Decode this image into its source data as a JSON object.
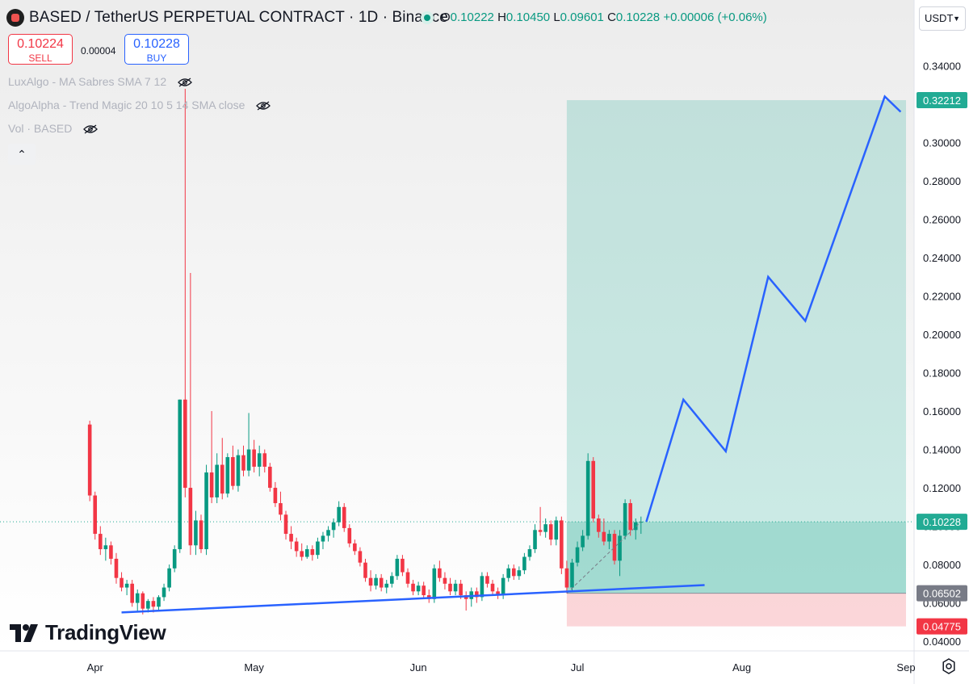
{
  "header": {
    "symbol_title": "BASED / TetherUS PERPETUAL CONTRACT · 1D · Binance",
    "ohlc": {
      "o_label": "O",
      "o": "0.10222",
      "h_label": "H",
      "h": "0.10450",
      "l_label": "L",
      "l": "0.09601",
      "c_label": "C",
      "c": "0.10228",
      "change": "+0.00006 (+0.06%)"
    },
    "up_color": "#089981",
    "down_color": "#f23645"
  },
  "trade": {
    "sell_price": "0.10224",
    "sell_label": "SELL",
    "spread": "0.00004",
    "buy_price": "0.10228",
    "buy_label": "BUY"
  },
  "indicators": [
    {
      "label": "LuxAlgo - MA Sabres SMA 7 12",
      "icon": "eye-off-icon"
    },
    {
      "label": "AlgoAlpha - Trend Magic 20 10 5 14 SMA close",
      "icon": "eye-off-icon"
    },
    {
      "label": "Vol · BASED",
      "icon": "eye-off-icon"
    }
  ],
  "collapse_icon": "chevron-up-icon",
  "currency_select": "USDT",
  "branding": "TradingView",
  "chart_data": {
    "type": "candlestick",
    "interval": "1D",
    "y_axis": {
      "range": [
        0.03,
        0.35
      ],
      "ticks": [
        "0.34000",
        "0.32000",
        "0.30000",
        "0.28000",
        "0.26000",
        "0.24000",
        "0.22000",
        "0.20000",
        "0.18000",
        "0.16000",
        "0.14000",
        "0.12000",
        "0.10000",
        "0.08000",
        "0.06000",
        "0.04000"
      ],
      "price_labels": [
        {
          "value": 0.32212,
          "text": "0.32212",
          "color": "#22ab94"
        },
        {
          "value": 0.10228,
          "text": "0.10228",
          "color": "#22ab94"
        },
        {
          "value": 0.06502,
          "text": "0.06502",
          "color": "#787b86"
        },
        {
          "value": 0.04775,
          "text": "0.04775",
          "color": "#f23645"
        }
      ]
    },
    "x_axis": {
      "range": [
        "2024-03-16",
        "2024-09-01"
      ],
      "ticks": [
        {
          "date": "2024-04-01",
          "label": "Apr"
        },
        {
          "date": "2024-05-01",
          "label": "May"
        },
        {
          "date": "2024-06-01",
          "label": "Jun"
        },
        {
          "date": "2024-07-01",
          "label": "Jul"
        },
        {
          "date": "2024-08-01",
          "label": "Aug"
        },
        {
          "date": "2024-09-01",
          "label": "Sep"
        }
      ]
    },
    "candles": [
      {
        "d": "2024-03-31",
        "o": 0.153,
        "h": 0.155,
        "l": 0.113,
        "c": 0.116
      },
      {
        "d": "2024-04-01",
        "o": 0.116,
        "h": 0.118,
        "l": 0.093,
        "c": 0.096
      },
      {
        "d": "2024-04-02",
        "o": 0.096,
        "h": 0.1,
        "l": 0.085,
        "c": 0.088
      },
      {
        "d": "2024-04-03",
        "o": 0.088,
        "h": 0.094,
        "l": 0.082,
        "c": 0.09
      },
      {
        "d": "2024-04-04",
        "o": 0.09,
        "h": 0.092,
        "l": 0.08,
        "c": 0.083
      },
      {
        "d": "2024-04-05",
        "o": 0.083,
        "h": 0.086,
        "l": 0.07,
        "c": 0.073
      },
      {
        "d": "2024-04-06",
        "o": 0.073,
        "h": 0.076,
        "l": 0.066,
        "c": 0.068
      },
      {
        "d": "2024-04-07",
        "o": 0.068,
        "h": 0.072,
        "l": 0.064,
        "c": 0.07
      },
      {
        "d": "2024-04-08",
        "o": 0.07,
        "h": 0.072,
        "l": 0.058,
        "c": 0.06
      },
      {
        "d": "2024-04-09",
        "o": 0.06,
        "h": 0.067,
        "l": 0.055,
        "c": 0.065
      },
      {
        "d": "2024-04-10",
        "o": 0.065,
        "h": 0.066,
        "l": 0.054,
        "c": 0.057
      },
      {
        "d": "2024-04-11",
        "o": 0.057,
        "h": 0.062,
        "l": 0.055,
        "c": 0.061
      },
      {
        "d": "2024-04-12",
        "o": 0.061,
        "h": 0.063,
        "l": 0.055,
        "c": 0.058
      },
      {
        "d": "2024-04-13",
        "o": 0.058,
        "h": 0.064,
        "l": 0.056,
        "c": 0.063
      },
      {
        "d": "2024-04-14",
        "o": 0.063,
        "h": 0.07,
        "l": 0.061,
        "c": 0.068
      },
      {
        "d": "2024-04-15",
        "o": 0.068,
        "h": 0.08,
        "l": 0.066,
        "c": 0.078
      },
      {
        "d": "2024-04-16",
        "o": 0.078,
        "h": 0.09,
        "l": 0.076,
        "c": 0.088
      },
      {
        "d": "2024-04-17",
        "o": 0.088,
        "h": 0.166,
        "l": 0.086,
        "c": 0.166
      },
      {
        "d": "2024-04-18",
        "o": 0.166,
        "h": 0.328,
        "l": 0.115,
        "c": 0.12
      },
      {
        "d": "2024-04-19",
        "o": 0.12,
        "h": 0.232,
        "l": 0.085,
        "c": 0.09
      },
      {
        "d": "2024-04-20",
        "o": 0.09,
        "h": 0.108,
        "l": 0.085,
        "c": 0.103
      },
      {
        "d": "2024-04-21",
        "o": 0.103,
        "h": 0.106,
        "l": 0.086,
        "c": 0.088
      },
      {
        "d": "2024-04-22",
        "o": 0.088,
        "h": 0.132,
        "l": 0.085,
        "c": 0.128
      },
      {
        "d": "2024-04-23",
        "o": 0.128,
        "h": 0.16,
        "l": 0.112,
        "c": 0.115
      },
      {
        "d": "2024-04-24",
        "o": 0.115,
        "h": 0.138,
        "l": 0.112,
        "c": 0.132
      },
      {
        "d": "2024-04-25",
        "o": 0.132,
        "h": 0.146,
        "l": 0.114,
        "c": 0.117
      },
      {
        "d": "2024-04-26",
        "o": 0.117,
        "h": 0.138,
        "l": 0.115,
        "c": 0.136
      },
      {
        "d": "2024-04-27",
        "o": 0.136,
        "h": 0.142,
        "l": 0.119,
        "c": 0.121
      },
      {
        "d": "2024-04-28",
        "o": 0.121,
        "h": 0.14,
        "l": 0.118,
        "c": 0.137
      },
      {
        "d": "2024-04-29",
        "o": 0.137,
        "h": 0.142,
        "l": 0.126,
        "c": 0.129
      },
      {
        "d": "2024-04-30",
        "o": 0.129,
        "h": 0.159,
        "l": 0.126,
        "c": 0.14
      },
      {
        "d": "2024-05-01",
        "o": 0.14,
        "h": 0.145,
        "l": 0.128,
        "c": 0.131
      },
      {
        "d": "2024-05-02",
        "o": 0.131,
        "h": 0.142,
        "l": 0.126,
        "c": 0.138
      },
      {
        "d": "2024-05-03",
        "o": 0.138,
        "h": 0.14,
        "l": 0.128,
        "c": 0.131
      },
      {
        "d": "2024-05-04",
        "o": 0.131,
        "h": 0.133,
        "l": 0.118,
        "c": 0.12
      },
      {
        "d": "2024-05-05",
        "o": 0.12,
        "h": 0.123,
        "l": 0.11,
        "c": 0.112
      },
      {
        "d": "2024-05-06",
        "o": 0.112,
        "h": 0.118,
        "l": 0.103,
        "c": 0.106
      },
      {
        "d": "2024-05-07",
        "o": 0.106,
        "h": 0.108,
        "l": 0.093,
        "c": 0.096
      },
      {
        "d": "2024-05-08",
        "o": 0.096,
        "h": 0.1,
        "l": 0.088,
        "c": 0.092
      },
      {
        "d": "2024-05-09",
        "o": 0.092,
        "h": 0.094,
        "l": 0.084,
        "c": 0.087
      },
      {
        "d": "2024-05-10",
        "o": 0.087,
        "h": 0.091,
        "l": 0.082,
        "c": 0.084
      },
      {
        "d": "2024-05-11",
        "o": 0.084,
        "h": 0.09,
        "l": 0.083,
        "c": 0.088
      },
      {
        "d": "2024-05-12",
        "o": 0.088,
        "h": 0.09,
        "l": 0.082,
        "c": 0.085
      },
      {
        "d": "2024-05-13",
        "o": 0.085,
        "h": 0.094,
        "l": 0.083,
        "c": 0.092
      },
      {
        "d": "2024-05-14",
        "o": 0.092,
        "h": 0.097,
        "l": 0.088,
        "c": 0.095
      },
      {
        "d": "2024-05-15",
        "o": 0.095,
        "h": 0.1,
        "l": 0.092,
        "c": 0.098
      },
      {
        "d": "2024-05-16",
        "o": 0.098,
        "h": 0.104,
        "l": 0.094,
        "c": 0.102
      },
      {
        "d": "2024-05-17",
        "o": 0.102,
        "h": 0.113,
        "l": 0.1,
        "c": 0.11
      },
      {
        "d": "2024-05-18",
        "o": 0.11,
        "h": 0.112,
        "l": 0.097,
        "c": 0.099
      },
      {
        "d": "2024-05-19",
        "o": 0.099,
        "h": 0.101,
        "l": 0.089,
        "c": 0.091
      },
      {
        "d": "2024-05-20",
        "o": 0.091,
        "h": 0.093,
        "l": 0.085,
        "c": 0.087
      },
      {
        "d": "2024-05-21",
        "o": 0.087,
        "h": 0.089,
        "l": 0.079,
        "c": 0.081
      },
      {
        "d": "2024-05-22",
        "o": 0.081,
        "h": 0.083,
        "l": 0.071,
        "c": 0.073
      },
      {
        "d": "2024-05-23",
        "o": 0.073,
        "h": 0.077,
        "l": 0.066,
        "c": 0.069
      },
      {
        "d": "2024-05-24",
        "o": 0.069,
        "h": 0.075,
        "l": 0.067,
        "c": 0.073
      },
      {
        "d": "2024-05-25",
        "o": 0.073,
        "h": 0.075,
        "l": 0.066,
        "c": 0.068
      },
      {
        "d": "2024-05-26",
        "o": 0.068,
        "h": 0.072,
        "l": 0.065,
        "c": 0.07
      },
      {
        "d": "2024-05-27",
        "o": 0.07,
        "h": 0.076,
        "l": 0.068,
        "c": 0.074
      },
      {
        "d": "2024-05-28",
        "o": 0.074,
        "h": 0.085,
        "l": 0.072,
        "c": 0.083
      },
      {
        "d": "2024-05-29",
        "o": 0.083,
        "h": 0.085,
        "l": 0.074,
        "c": 0.076
      },
      {
        "d": "2024-05-30",
        "o": 0.076,
        "h": 0.078,
        "l": 0.068,
        "c": 0.07
      },
      {
        "d": "2024-05-31",
        "o": 0.07,
        "h": 0.072,
        "l": 0.064,
        "c": 0.066
      },
      {
        "d": "2024-06-01",
        "o": 0.066,
        "h": 0.071,
        "l": 0.064,
        "c": 0.069
      },
      {
        "d": "2024-06-02",
        "o": 0.069,
        "h": 0.071,
        "l": 0.062,
        "c": 0.064
      },
      {
        "d": "2024-06-03",
        "o": 0.064,
        "h": 0.067,
        "l": 0.06,
        "c": 0.062
      },
      {
        "d": "2024-06-04",
        "o": 0.062,
        "h": 0.08,
        "l": 0.06,
        "c": 0.078
      },
      {
        "d": "2024-06-05",
        "o": 0.078,
        "h": 0.082,
        "l": 0.071,
        "c": 0.073
      },
      {
        "d": "2024-06-06",
        "o": 0.073,
        "h": 0.076,
        "l": 0.067,
        "c": 0.07
      },
      {
        "d": "2024-06-07",
        "o": 0.07,
        "h": 0.073,
        "l": 0.064,
        "c": 0.066
      },
      {
        "d": "2024-06-08",
        "o": 0.066,
        "h": 0.072,
        "l": 0.064,
        "c": 0.07
      },
      {
        "d": "2024-06-09",
        "o": 0.07,
        "h": 0.072,
        "l": 0.062,
        "c": 0.064
      },
      {
        "d": "2024-06-10",
        "o": 0.064,
        "h": 0.066,
        "l": 0.056,
        "c": 0.062
      },
      {
        "d": "2024-06-11",
        "o": 0.062,
        "h": 0.068,
        "l": 0.058,
        "c": 0.066
      },
      {
        "d": "2024-06-12",
        "o": 0.066,
        "h": 0.068,
        "l": 0.06,
        "c": 0.063
      },
      {
        "d": "2024-06-13",
        "o": 0.063,
        "h": 0.076,
        "l": 0.061,
        "c": 0.074
      },
      {
        "d": "2024-06-14",
        "o": 0.074,
        "h": 0.076,
        "l": 0.068,
        "c": 0.07
      },
      {
        "d": "2024-06-15",
        "o": 0.07,
        "h": 0.072,
        "l": 0.064,
        "c": 0.066
      },
      {
        "d": "2024-06-16",
        "o": 0.066,
        "h": 0.068,
        "l": 0.062,
        "c": 0.064
      },
      {
        "d": "2024-06-17",
        "o": 0.064,
        "h": 0.075,
        "l": 0.062,
        "c": 0.073
      },
      {
        "d": "2024-06-18",
        "o": 0.073,
        "h": 0.08,
        "l": 0.071,
        "c": 0.078
      },
      {
        "d": "2024-06-19",
        "o": 0.078,
        "h": 0.08,
        "l": 0.072,
        "c": 0.074
      },
      {
        "d": "2024-06-20",
        "o": 0.074,
        "h": 0.079,
        "l": 0.072,
        "c": 0.077
      },
      {
        "d": "2024-06-21",
        "o": 0.077,
        "h": 0.086,
        "l": 0.075,
        "c": 0.084
      },
      {
        "d": "2024-06-22",
        "o": 0.084,
        "h": 0.09,
        "l": 0.082,
        "c": 0.088
      },
      {
        "d": "2024-06-23",
        "o": 0.088,
        "h": 0.101,
        "l": 0.086,
        "c": 0.098
      },
      {
        "d": "2024-06-24",
        "o": 0.098,
        "h": 0.11,
        "l": 0.095,
        "c": 0.097
      },
      {
        "d": "2024-06-25",
        "o": 0.097,
        "h": 0.104,
        "l": 0.094,
        "c": 0.101
      },
      {
        "d": "2024-06-26",
        "o": 0.101,
        "h": 0.103,
        "l": 0.09,
        "c": 0.093
      },
      {
        "d": "2024-06-27",
        "o": 0.093,
        "h": 0.105,
        "l": 0.09,
        "c": 0.103
      },
      {
        "d": "2024-06-28",
        "o": 0.103,
        "h": 0.105,
        "l": 0.075,
        "c": 0.078
      },
      {
        "d": "2024-06-29",
        "o": 0.078,
        "h": 0.082,
        "l": 0.065,
        "c": 0.068
      },
      {
        "d": "2024-06-30",
        "o": 0.068,
        "h": 0.083,
        "l": 0.066,
        "c": 0.081
      },
      {
        "d": "2024-07-01",
        "o": 0.081,
        "h": 0.092,
        "l": 0.079,
        "c": 0.089
      },
      {
        "d": "2024-07-02",
        "o": 0.089,
        "h": 0.098,
        "l": 0.087,
        "c": 0.095
      },
      {
        "d": "2024-07-03",
        "o": 0.095,
        "h": 0.138,
        "l": 0.093,
        "c": 0.134
      },
      {
        "d": "2024-07-04",
        "o": 0.134,
        "h": 0.136,
        "l": 0.102,
        "c": 0.104
      },
      {
        "d": "2024-07-05",
        "o": 0.104,
        "h": 0.106,
        "l": 0.094,
        "c": 0.097
      },
      {
        "d": "2024-07-06",
        "o": 0.097,
        "h": 0.104,
        "l": 0.09,
        "c": 0.092
      },
      {
        "d": "2024-07-07",
        "o": 0.092,
        "h": 0.098,
        "l": 0.088,
        "c": 0.096
      },
      {
        "d": "2024-07-08",
        "o": 0.096,
        "h": 0.098,
        "l": 0.08,
        "c": 0.082
      },
      {
        "d": "2024-07-09",
        "o": 0.082,
        "h": 0.098,
        "l": 0.074,
        "c": 0.095
      },
      {
        "d": "2024-07-10",
        "o": 0.095,
        "h": 0.114,
        "l": 0.093,
        "c": 0.112
      },
      {
        "d": "2024-07-11",
        "o": 0.112,
        "h": 0.114,
        "l": 0.095,
        "c": 0.098
      },
      {
        "d": "2024-07-12",
        "o": 0.098,
        "h": 0.104,
        "l": 0.093,
        "c": 0.102
      },
      {
        "d": "2024-07-13",
        "o": 0.102,
        "h": 0.105,
        "l": 0.096,
        "c": 0.1023
      }
    ],
    "position": {
      "type": "long",
      "start": "2024-06-29",
      "end": "2024-09-01",
      "entry": 0.06502,
      "target": 0.32212,
      "stop": 0.04775,
      "profit_color": "#22ab94",
      "loss_color": "#f23645"
    },
    "trendline": [
      {
        "d": "2024-04-06",
        "v": 0.055
      },
      {
        "d": "2024-07-25",
        "v": 0.0693
      }
    ],
    "projection_path": [
      {
        "d": "2024-07-14",
        "v": 0.1023
      },
      {
        "d": "2024-07-21",
        "v": 0.166
      },
      {
        "d": "2024-07-29",
        "v": 0.139
      },
      {
        "d": "2024-08-06",
        "v": 0.23
      },
      {
        "d": "2024-08-13",
        "v": 0.207
      },
      {
        "d": "2024-08-28",
        "v": 0.324
      },
      {
        "d": "2024-08-31",
        "v": 0.316
      }
    ],
    "projection_color": "#2962ff",
    "current_price": 0.10228
  }
}
